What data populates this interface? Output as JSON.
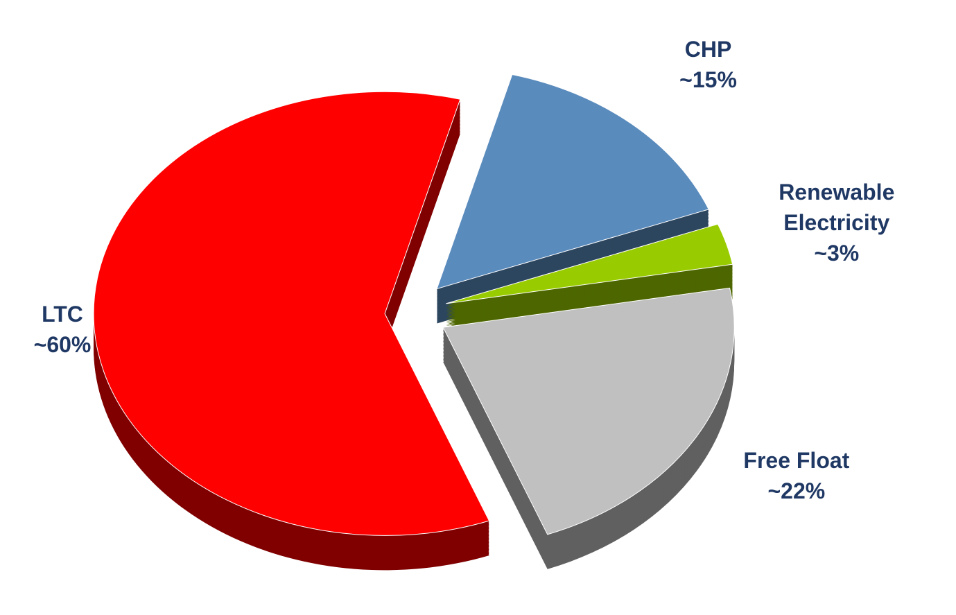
{
  "chart_data": {
    "type": "pie",
    "categories": [
      "CHP",
      "Renewable Electricity",
      "Free Float",
      "LTC"
    ],
    "values": [
      15,
      3,
      22,
      60
    ],
    "value_labels": [
      "~15%",
      "~3%",
      "~22%",
      "~60%"
    ],
    "colors": [
      "#5a8bbd",
      "#99cc00",
      "#c0c0c0",
      "#ff0000"
    ]
  }
}
